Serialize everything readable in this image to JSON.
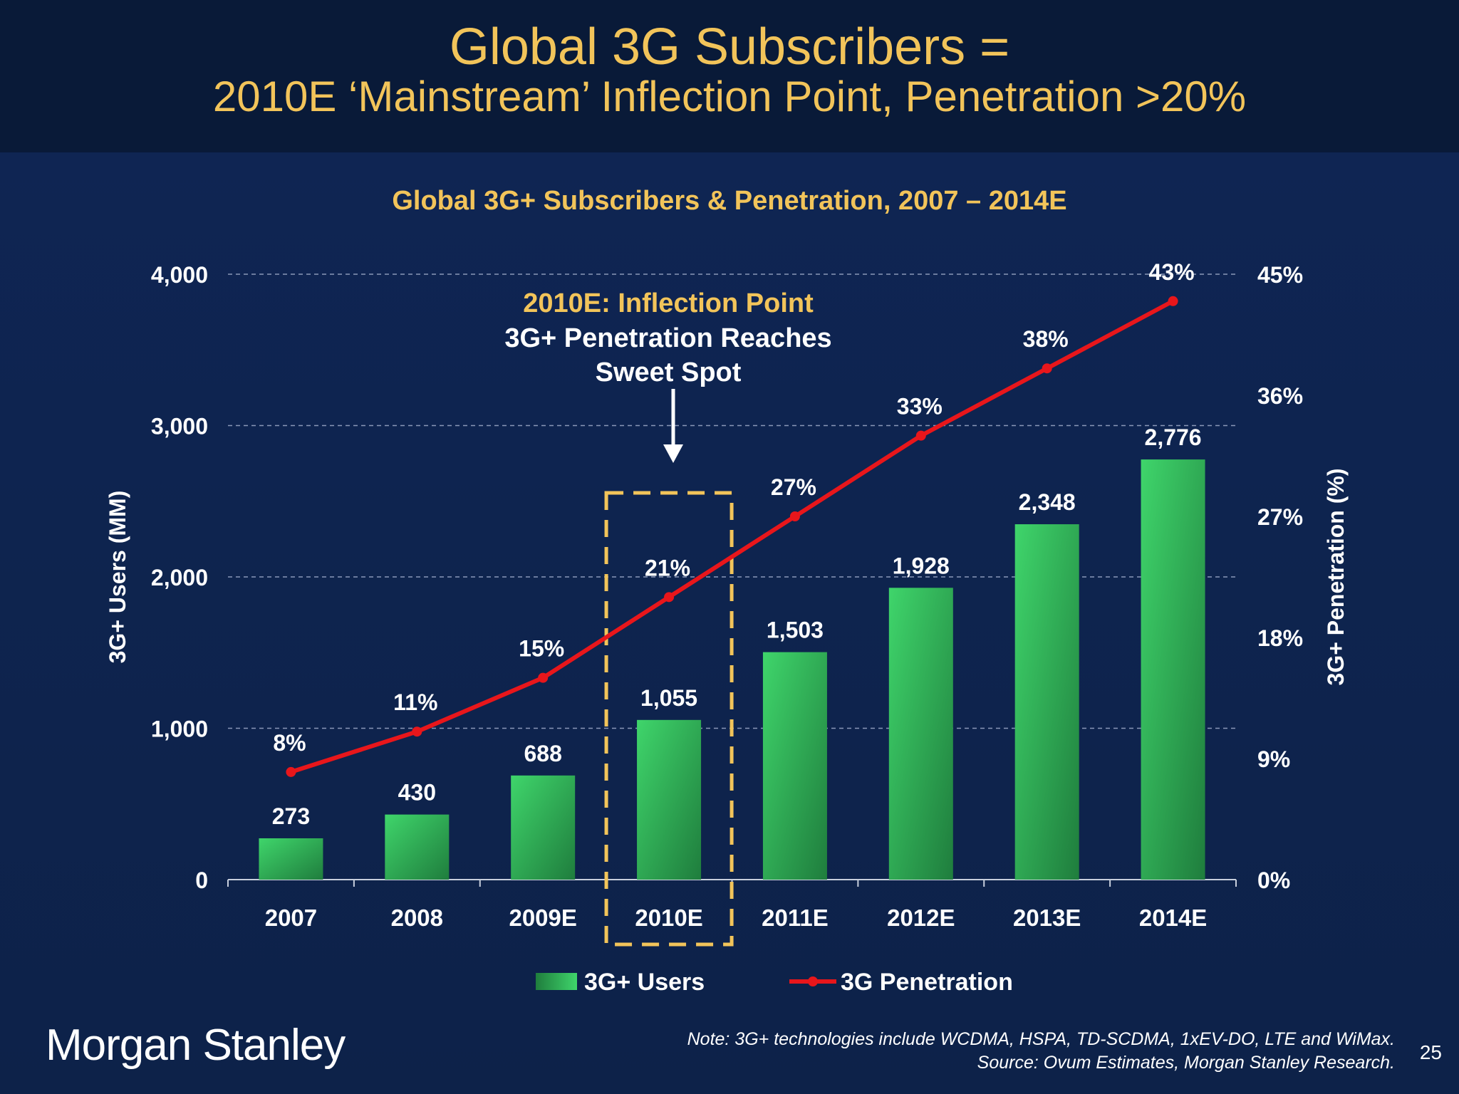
{
  "header": {
    "title_line1": "Global 3G Subscribers =",
    "title_line2": "2010E ‘Mainstream’ Inflection Point, Penetration >20%"
  },
  "colors": {
    "background": "#0b1e45",
    "header_bg": "#091a38",
    "title": "#f2c45a",
    "bar": "#2db357",
    "line": "#e8161b",
    "text": "#ffffff",
    "highlight_box": "#f2c45a"
  },
  "annotation": {
    "line1": "2010E: Inflection Point",
    "line2": "3G+ Penetration Reaches",
    "line3": "Sweet Spot"
  },
  "chart_data": {
    "type": "bar",
    "title": "Global 3G+ Subscribers & Penetration, 2007 – 2014E",
    "categories": [
      "2007",
      "2008",
      "2009E",
      "2010E",
      "2011E",
      "2012E",
      "2013E",
      "2014E"
    ],
    "series": [
      {
        "name": "3G+ Users",
        "type": "bar",
        "axis": "left",
        "values": [
          273,
          430,
          688,
          1055,
          1503,
          1928,
          2348,
          2776
        ],
        "labels": [
          "273",
          "430",
          "688",
          "1,055",
          "1,503",
          "1,928",
          "2,348",
          "2,776"
        ]
      },
      {
        "name": "3G Penetration",
        "type": "line",
        "axis": "right",
        "values": [
          8,
          11,
          15,
          21,
          27,
          33,
          38,
          43
        ],
        "labels": [
          "8%",
          "11%",
          "15%",
          "21%",
          "27%",
          "33%",
          "38%",
          "43%"
        ]
      }
    ],
    "ylabel": "3G+ Users (MM)",
    "ylim": [
      0,
      4000
    ],
    "yticks": [
      "0",
      "1,000",
      "2,000",
      "3,000",
      "4,000"
    ],
    "y2label": "3G+ Penetration (%)",
    "y2lim": [
      0,
      45
    ],
    "y2ticks": [
      "0%",
      "9%",
      "18%",
      "27%",
      "36%",
      "45%"
    ],
    "highlight_category": "2010E",
    "legend_position": "bottom",
    "grid": true
  },
  "footer": {
    "logo": "Morgan Stanley",
    "note_line1": "Note: 3G+ technologies include WCDMA, HSPA, TD-SCDMA, 1xEV-DO, LTE and WiMax.",
    "note_line2": "Source: Ovum Estimates, Morgan Stanley Research.",
    "page_number": "25"
  }
}
